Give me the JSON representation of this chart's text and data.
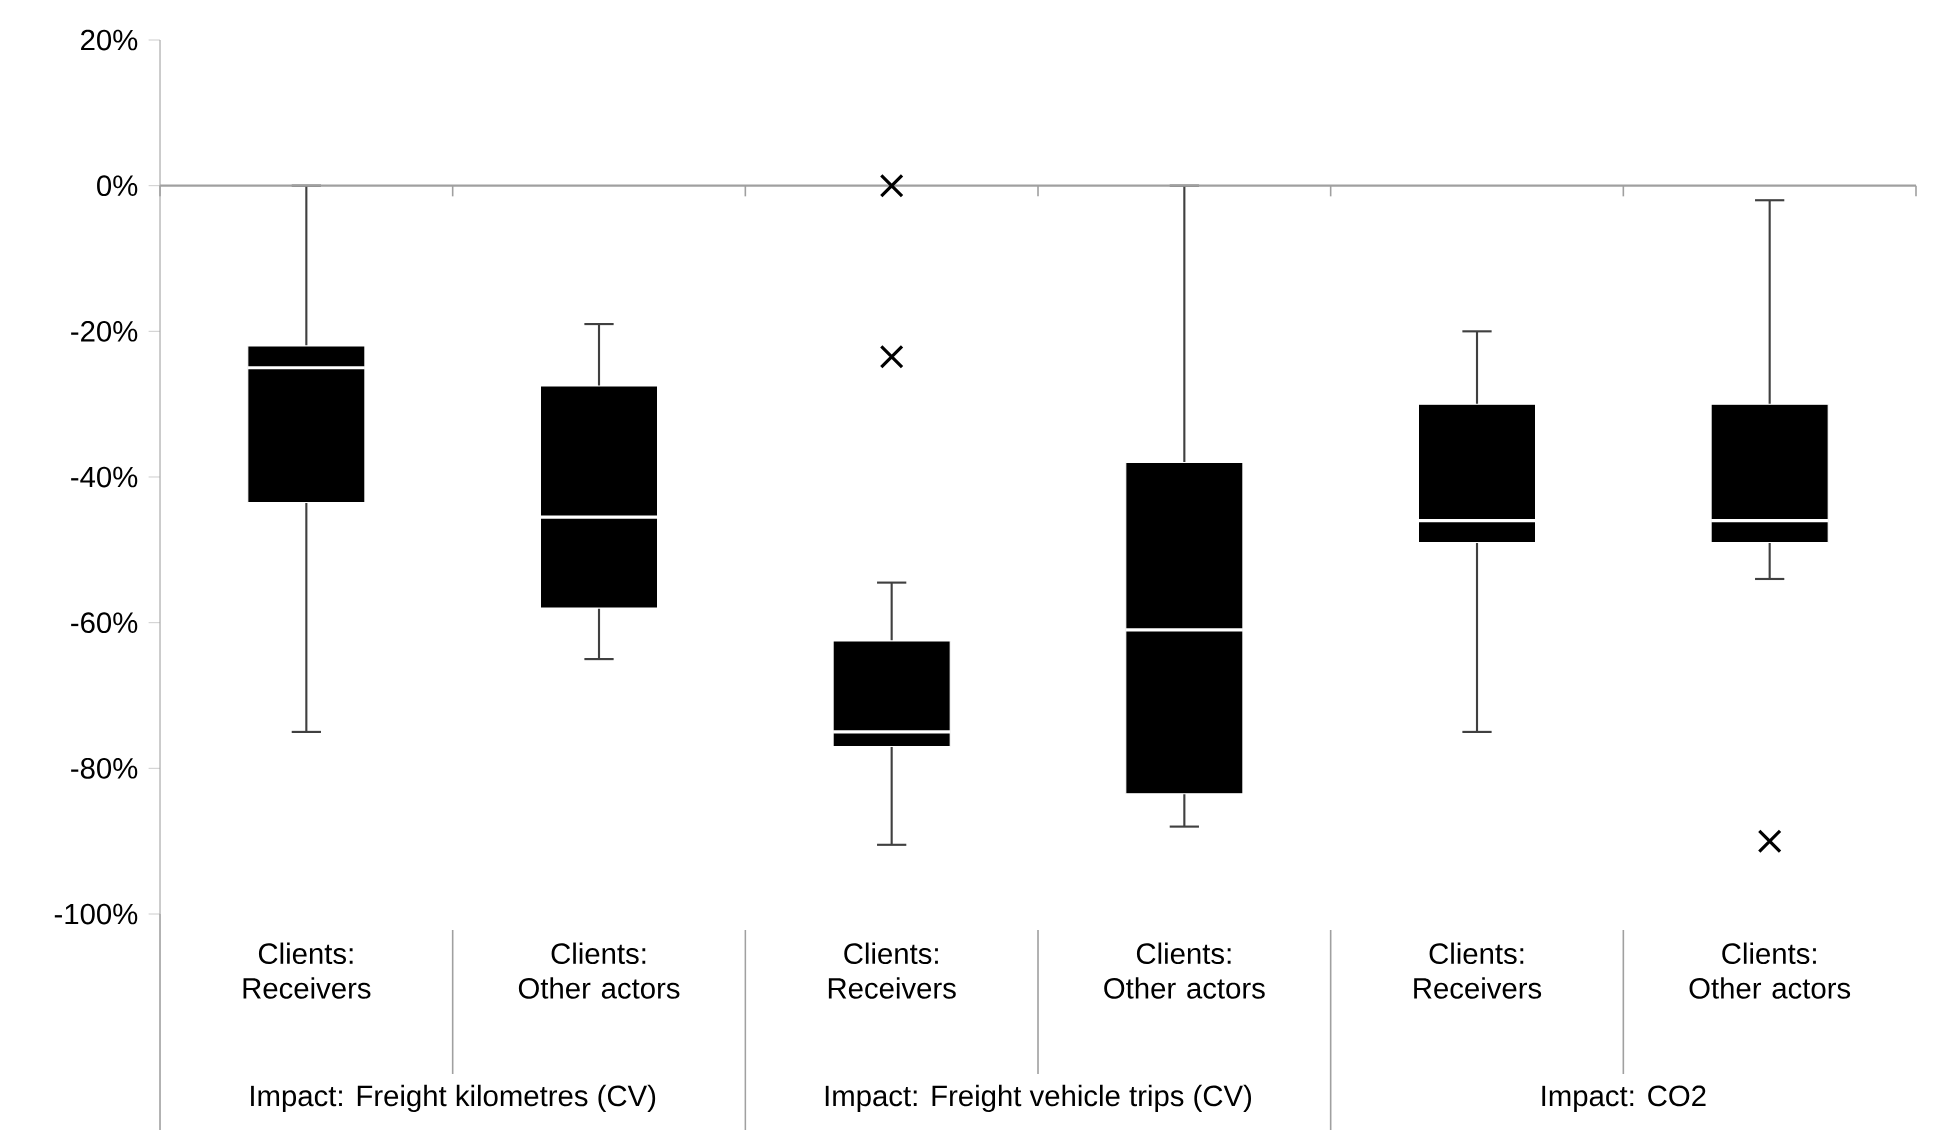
{
  "chart_data": {
    "type": "box",
    "categories": [
      "Clients: Receivers",
      "Clients: Other actors",
      "Clients: Receivers",
      "Clients: Other actors",
      "Clients: Receivers",
      "Clients: Other actors"
    ],
    "color": "#000000",
    "marker": "cross",
    "ylim": [
      -100,
      20
    ],
    "yticks": [
      {
        "value": -100,
        "label": "-100%"
      },
      {
        "value": -80,
        "label": "-80%"
      },
      {
        "value": -60,
        "label": "-60%"
      },
      {
        "value": -40,
        "label": "-40%"
      },
      {
        "value": -20,
        "label": "-20%"
      },
      {
        "value": 0,
        "label": "0%"
      },
      {
        "value": 20,
        "label": "20%"
      }
    ],
    "boxes": [
      {
        "low": -75,
        "q1": -43.5,
        "median": -25,
        "q3": -22,
        "high": 0
      },
      {
        "low": -65,
        "q1": -58,
        "median": -45.5,
        "q3": -27.5,
        "high": -19
      },
      {
        "low": -90.5,
        "q1": -77,
        "median": -75,
        "q3": -62.5,
        "high": -54.5,
        "outliers": [
          0,
          -23.5
        ]
      },
      {
        "low": -88,
        "q1": -83.5,
        "median": -61,
        "q3": -38,
        "high": 0
      },
      {
        "low": -75,
        "q1": -49,
        "median": -46,
        "q3": -30,
        "high": -20
      },
      {
        "low": -54,
        "q1": -49,
        "median": -46,
        "q3": -30,
        "high": -2,
        "outliers": [
          -90
        ]
      }
    ],
    "annotations": [
      "Impact: Freight kilometres (CV)",
      "Impact: Freight vehicle trips (CV)",
      "Impact: CO2"
    ]
  }
}
